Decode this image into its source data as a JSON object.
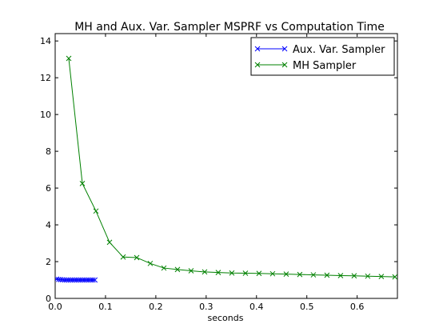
{
  "chart_data": {
    "type": "line",
    "title": "MH and Aux. Var. Sampler MSPRF vs Computation Time",
    "xlabel": "seconds",
    "ylabel": "",
    "xlim": [
      0.0,
      0.68
    ],
    "ylim": [
      0,
      14.4
    ],
    "xticks": [
      "0.0",
      "0.1",
      "0.2",
      "0.3",
      "0.4",
      "0.5",
      "0.6"
    ],
    "yticks": [
      "0",
      "2",
      "4",
      "6",
      "8",
      "10",
      "12",
      "14"
    ],
    "grid": false,
    "legend_position": "top-right",
    "series": [
      {
        "name": "Aux. Var. Sampler",
        "color": "#0000ff",
        "marker": "x",
        "x": [
          0.003,
          0.007,
          0.011,
          0.015,
          0.019,
          0.023,
          0.027,
          0.031,
          0.035,
          0.039,
          0.043,
          0.047,
          0.051,
          0.055,
          0.059,
          0.063,
          0.067,
          0.071,
          0.075,
          0.079
        ],
        "y": [
          1.05,
          1.03,
          1.02,
          1.01,
          1.0,
          1.0,
          1.0,
          1.0,
          1.0,
          1.0,
          1.0,
          1.0,
          1.0,
          1.0,
          1.0,
          1.0,
          1.0,
          1.0,
          1.0,
          1.0
        ]
      },
      {
        "name": "MH Sampler",
        "color": "#008000",
        "marker": "x",
        "x": [
          0.027,
          0.054,
          0.081,
          0.108,
          0.135,
          0.162,
          0.189,
          0.216,
          0.243,
          0.27,
          0.297,
          0.324,
          0.351,
          0.378,
          0.405,
          0.432,
          0.459,
          0.486,
          0.513,
          0.54,
          0.567,
          0.594,
          0.621,
          0.648,
          0.675
        ],
        "y": [
          13.05,
          6.25,
          4.75,
          3.05,
          2.25,
          2.22,
          1.9,
          1.65,
          1.57,
          1.5,
          1.44,
          1.41,
          1.38,
          1.37,
          1.36,
          1.34,
          1.32,
          1.3,
          1.28,
          1.26,
          1.24,
          1.23,
          1.21,
          1.19,
          1.17
        ]
      }
    ]
  }
}
